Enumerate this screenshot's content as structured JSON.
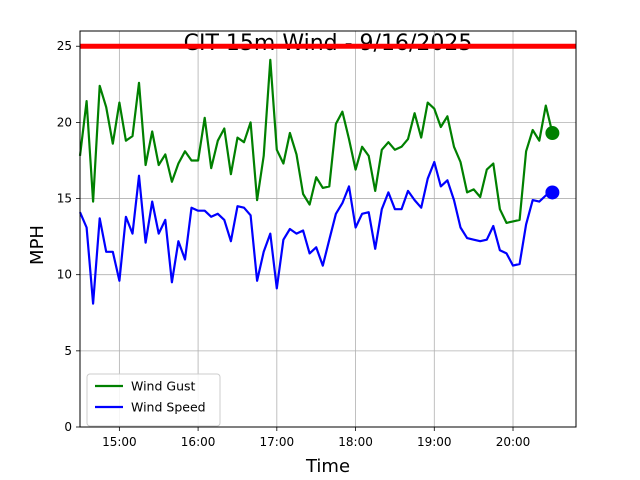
{
  "chart_data": {
    "type": "line",
    "title": "CIT 15m Wind - 9/16/2025",
    "xlabel": "Time",
    "ylabel": "MPH",
    "ylim": [
      0,
      26
    ],
    "xlim": [
      "14:30",
      "20:48"
    ],
    "x_ticks": [
      "15:00",
      "16:00",
      "17:00",
      "18:00",
      "19:00",
      "20:00"
    ],
    "y_ticks": [
      0,
      5,
      10,
      15,
      20,
      25
    ],
    "grid": true,
    "legend_position": "lower-left",
    "threshold": {
      "value": 25,
      "color": "#ff0000"
    },
    "x": [
      "14:30",
      "14:35",
      "14:40",
      "14:45",
      "14:50",
      "14:55",
      "15:00",
      "15:05",
      "15:10",
      "15:15",
      "15:20",
      "15:25",
      "15:30",
      "15:35",
      "15:40",
      "15:45",
      "15:50",
      "15:55",
      "16:00",
      "16:05",
      "16:10",
      "16:15",
      "16:20",
      "16:25",
      "16:30",
      "16:35",
      "16:40",
      "16:45",
      "16:50",
      "16:55",
      "17:00",
      "17:05",
      "17:10",
      "17:15",
      "17:20",
      "17:25",
      "17:30",
      "17:35",
      "17:40",
      "17:45",
      "17:50",
      "17:55",
      "18:00",
      "18:05",
      "18:10",
      "18:15",
      "18:20",
      "18:25",
      "18:30",
      "18:35",
      "18:40",
      "18:45",
      "18:50",
      "18:55",
      "19:00",
      "19:05",
      "19:10",
      "19:15",
      "19:20",
      "19:25",
      "19:30",
      "19:35",
      "19:40",
      "19:45",
      "19:50",
      "19:55",
      "20:00",
      "20:05",
      "20:10",
      "20:15",
      "20:20",
      "20:25",
      "20:30"
    ],
    "series": [
      {
        "name": "Wind Gust",
        "color": "#008000",
        "values": [
          17.8,
          21.4,
          14.8,
          22.4,
          21.0,
          18.6,
          21.3,
          18.8,
          19.1,
          22.6,
          17.2,
          19.4,
          17.2,
          17.9,
          16.1,
          17.3,
          18.1,
          17.5,
          17.5,
          20.3,
          17.0,
          18.8,
          19.6,
          16.6,
          19.0,
          18.7,
          20.0,
          14.9,
          17.8,
          24.1,
          18.2,
          17.3,
          19.3,
          17.9,
          15.3,
          14.6,
          16.4,
          15.7,
          15.8,
          19.9,
          20.7,
          18.9,
          16.9,
          18.4,
          17.8,
          15.5,
          18.2,
          18.7,
          18.2,
          18.4,
          18.9,
          20.6,
          19.0,
          21.3,
          20.9,
          19.7,
          20.4,
          18.4,
          17.4,
          15.4,
          15.6,
          15.1,
          16.9,
          17.3,
          14.3,
          13.4,
          13.5,
          13.6,
          18.1,
          19.5,
          18.8,
          21.1,
          19.3
        ]
      },
      {
        "name": "Wind Speed",
        "color": "#0000ff",
        "values": [
          14.1,
          13.1,
          8.1,
          13.7,
          11.5,
          11.5,
          9.6,
          13.8,
          12.7,
          16.5,
          12.1,
          14.8,
          12.7,
          13.6,
          9.5,
          12.2,
          11.0,
          14.4,
          14.2,
          14.2,
          13.8,
          14.0,
          13.6,
          12.2,
          14.5,
          14.4,
          13.9,
          9.6,
          11.5,
          12.7,
          9.1,
          12.3,
          13.0,
          12.7,
          12.9,
          11.4,
          11.8,
          10.6,
          12.3,
          14.0,
          14.7,
          15.8,
          13.1,
          14.0,
          14.1,
          11.7,
          14.3,
          15.4,
          14.3,
          14.3,
          15.5,
          14.9,
          14.4,
          16.3,
          17.4,
          15.8,
          16.2,
          14.9,
          13.1,
          12.4,
          12.3,
          12.2,
          12.3,
          13.2,
          11.6,
          11.4,
          10.6,
          10.7,
          13.3,
          14.9,
          14.8,
          15.2,
          15.4
        ]
      }
    ]
  }
}
